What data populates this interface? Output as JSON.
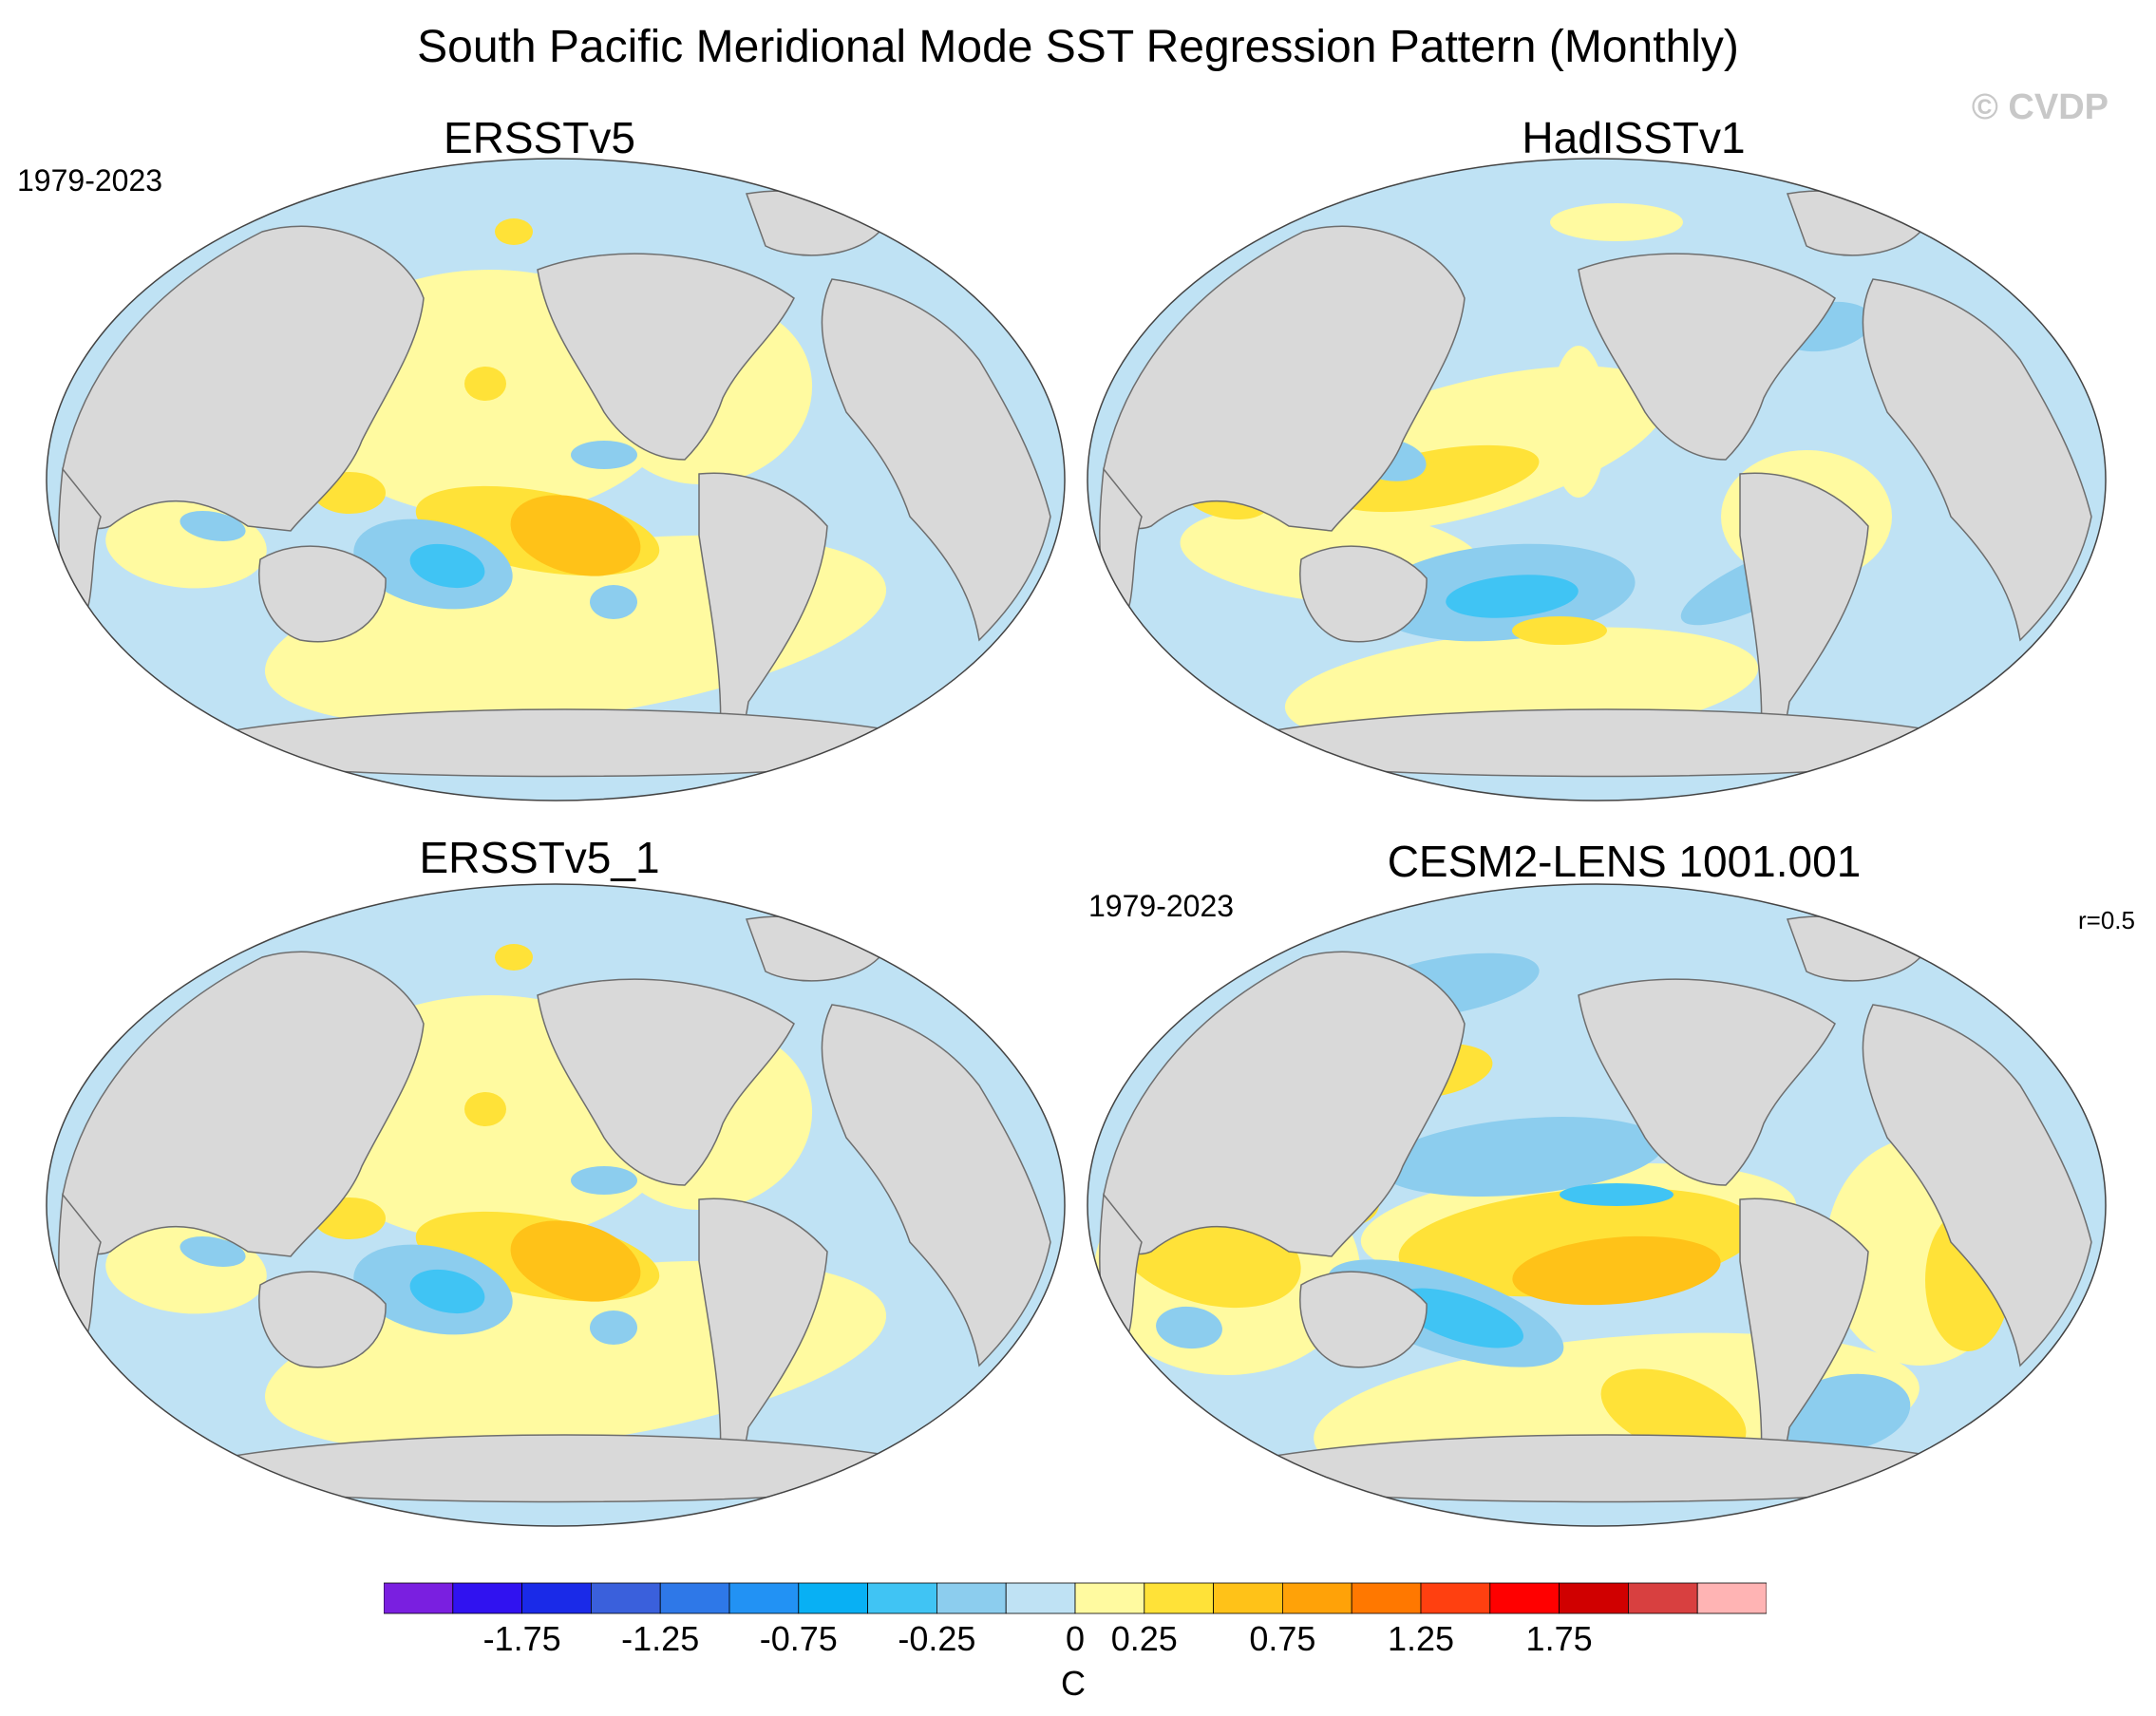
{
  "title": "South Pacific Meridional Mode SST Regression Pattern (Monthly)",
  "watermark": "© CVDP",
  "panels": [
    {
      "title": "ERSSTv5",
      "period": "1979-2023",
      "corr": ""
    },
    {
      "title": "HadISSTv1",
      "period": "",
      "corr": ""
    },
    {
      "title": "ERSSTv5_1",
      "period": "",
      "corr": ""
    },
    {
      "title": "CESM2-LENS 1001.001",
      "period": "1979-2023",
      "corr": "r=0.5"
    }
  ],
  "colorbar": {
    "units": "C",
    "tick_labels": [
      "-1.75",
      "-1.25",
      "-0.75",
      "-0.25",
      "0",
      "0.25",
      "0.75",
      "1.25",
      "1.75"
    ],
    "colors": [
      "#7a1fe0",
      "#3012f0",
      "#1a2ae8",
      "#3a60dc",
      "#2e78e8",
      "#2292f4",
      "#08b0f4",
      "#40c4f4",
      "#8ccdee",
      "#bfe2f4",
      "#fffaa0",
      "#ffe238",
      "#ffc218",
      "#ffa208",
      "#ff7800",
      "#ff4010",
      "#ff0000",
      "#d00000",
      "#d84040",
      "#ffb4b4"
    ]
  },
  "palette": {
    "land": "#d9d9d9",
    "ocean_light_blue": "#bfe2f4",
    "ocean_blue": "#8ccdee",
    "ocean_mid_blue": "#40c4f4",
    "ocean_light_yellow": "#fffaa0",
    "ocean_yellow": "#ffe238",
    "ocean_orange": "#ffc218"
  }
}
